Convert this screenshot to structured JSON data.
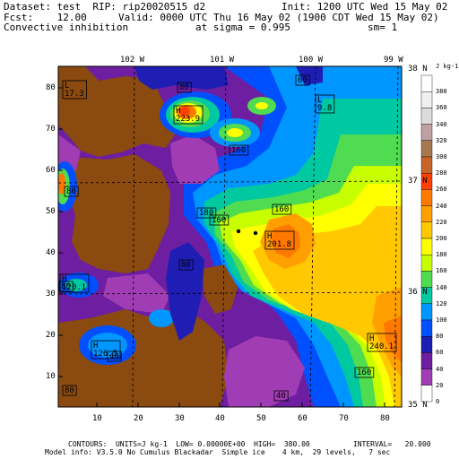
{
  "header": {
    "dataset": "Dataset: test  RIP: rip20020515 d2",
    "init": "Init: 1200 UTC Wed 15 May 02",
    "fcst": "Fcst:    12.00",
    "valid": "Valid: 0000 UTC Thu 16 May 02 (1900 CDT Wed 15 May 02)",
    "field": "Convective inhibition",
    "sigma": "at sigma = 0.995",
    "sm": "sm= 1"
  },
  "longitude_labels": [
    "102 W",
    "101 W",
    "100 W",
    "99 W"
  ],
  "latitude_labels": [
    "38 N",
    "37 N",
    "36 N",
    "35 N"
  ],
  "x_ticks": [
    "10",
    "20",
    "30",
    "40",
    "50",
    "60",
    "70",
    "80"
  ],
  "y_ticks": [
    "80",
    "70",
    "60",
    "50",
    "40",
    "30",
    "20",
    "10"
  ],
  "colorbar": {
    "unit": "J kg-1",
    "levels": [
      "380",
      "360",
      "340",
      "320",
      "300",
      "280",
      "260",
      "240",
      "220",
      "200",
      "180",
      "160",
      "140",
      "120",
      "100",
      "80",
      "60",
      "40",
      "20",
      "0"
    ],
    "colors": [
      "#ffffff",
      "#f0f0f0",
      "#dcdcdc",
      "#c0a0a0",
      "#a87850",
      "#c86428",
      "#ff4000",
      "#ff7800",
      "#ffa000",
      "#ffc800",
      "#ffff00",
      "#c8ff00",
      "#50dc50",
      "#00c8a0",
      "#0096ff",
      "#0050ff",
      "#1e1eb4",
      "#6e1ea0",
      "#a03cb4",
      "#ffffff"
    ]
  },
  "features": {
    "highs": [
      {
        "letter": "H",
        "value": "201.8"
      },
      {
        "letter": "H",
        "value": "240.1"
      },
      {
        "letter": "H",
        "value": "126.5"
      },
      {
        "letter": "H",
        "value": "120.1"
      },
      {
        "letter": "H",
        "value": "223.9"
      }
    ],
    "lows": [
      {
        "letter": "L",
        "value": "17.3"
      },
      {
        "letter": "L",
        "value": "9.8"
      }
    ],
    "contour_labels": [
      "160",
      "160",
      "160",
      "160",
      "60",
      "40",
      "80",
      "80",
      "80",
      "80",
      "80",
      "40",
      "180",
      "60"
    ],
    "points": [
      "point-1",
      "point-2"
    ]
  },
  "footer": {
    "line1": "CONTOURS:  UNITS=J kg-1  LOW= 0.00000E+00  HIGH=  380.00          INTERVAL=   20.000",
    "line2": "Model info: V3.5.0 No Cumulus Blackadar  Simple ice    4 km,  29 levels,   7 sec"
  }
}
